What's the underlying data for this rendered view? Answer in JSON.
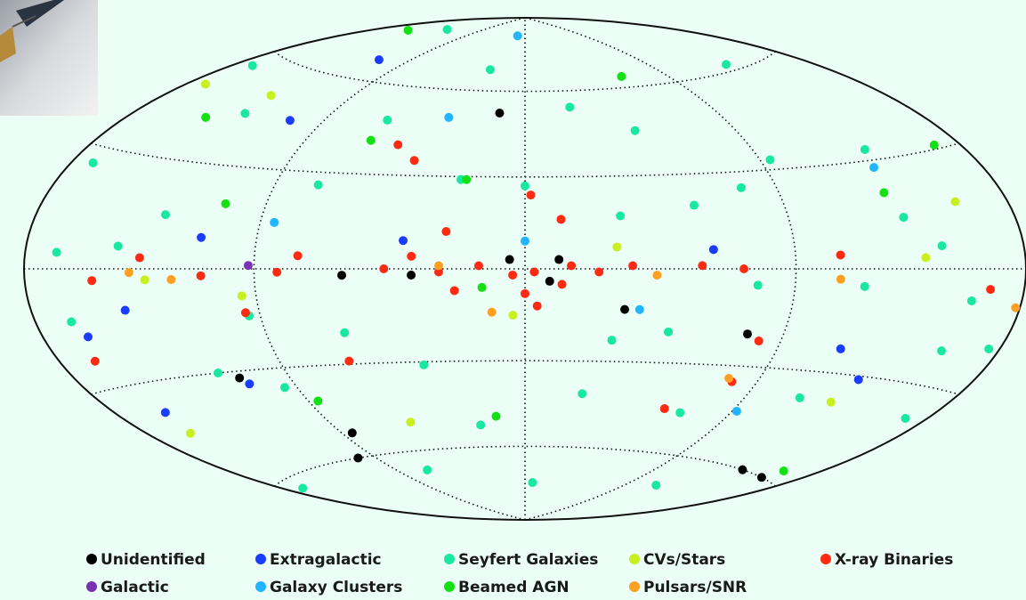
{
  "chart_data": {
    "type": "skymap",
    "xlim": [
      180,
      -180
    ],
    "ylim": [
      -90,
      90
    ],
    "xticks": [
      -90,
      0,
      90
    ],
    "yticks": [
      -60,
      -30,
      0,
      30,
      60
    ],
    "grid": true,
    "series": [
      {
        "name": "Unidentified",
        "color": "#000000",
        "x": [
          12,
          60,
          37,
          5,
          -11,
          -8,
          -33,
          -77,
          110,
          85,
          100,
          -140,
          -160
        ],
        "y": [
          52,
          -2,
          -2,
          3,
          3,
          -4,
          -13,
          -20,
          -32,
          -52,
          -60,
          -60,
          -60
        ]
      },
      {
        "name": "Extragalactic",
        "color": "#1a3cff",
        "x": [
          105,
          111,
          40,
          110,
          140,
          157,
          108,
          -114,
          -130,
          -62,
          160
        ],
        "y": [
          45,
          67,
          9,
          9,
          -11,
          -38,
          -34,
          -23,
          -31,
          6,
          -17
        ]
      },
      {
        "name": "Seyfert Galaxies",
        "color": "#19e8a0",
        "x": [
          135,
          25,
          -22,
          -47,
          -77,
          -58,
          -136,
          -155,
          -175,
          166,
          164,
          170,
          117,
          95,
          86,
          170,
          37,
          -23,
          -7,
          -113,
          -113,
          -170,
          -136,
          170,
          129,
          74,
          62,
          23,
          -32,
          -49,
          -77,
          -115,
          -133,
          -145,
          126,
          141,
          94,
          21,
          70,
          -30,
          -68,
          0,
          62,
          -94,
          -158
        ],
        "y": [
          80,
          68,
          54,
          45,
          25,
          20,
          33,
          -21,
          -19,
          4,
          -13,
          26,
          -30,
          -36,
          -41,
          -63,
          -31,
          -41,
          -74,
          -70,
          -38,
          -38,
          62,
          56,
          45,
          26,
          -20,
          29,
          17,
          -20,
          -5,
          -5,
          14,
          6,
          15,
          6,
          -14,
          -52,
          -67,
          -23,
          -46,
          27,
          48,
          33,
          -8
        ]
      },
      {
        "name": "CVs/Stars",
        "color": "#c8f01e",
        "x": [
          171,
          130,
          -30,
          -138,
          -157,
          160,
          53,
          4,
          95,
          130,
          -128
        ],
        "y": [
          49,
          51,
          7,
          3,
          17,
          -44,
          -50,
          -15,
          -8,
          -3,
          -38
        ]
      },
      {
        "name": "X-ray Binaries",
        "color": "#ff2a12",
        "x": [
          51,
          42,
          -2,
          -12,
          26,
          75,
          82,
          151,
          164,
          95,
          46,
          37,
          28,
          15,
          4,
          -3,
          -15,
          -24,
          -35,
          -58,
          -72,
          -4,
          0,
          23,
          -106,
          -165,
          -82,
          -80,
          -60,
          64,
          132,
          109,
          -12
        ],
        "y": [
          40,
          35,
          24,
          16,
          12,
          4,
          -1,
          -3,
          -23,
          -13,
          0,
          4,
          -1,
          1,
          -2,
          -1,
          1,
          -1,
          1,
          1,
          0,
          -12,
          -8,
          -7,
          4,
          -5,
          -22,
          -35,
          -45,
          -29,
          3,
          -2,
          -5
        ]
      },
      {
        "name": "Galactic",
        "color": "#7a32b4",
        "x": [
          92
        ],
        "y": [
          1
        ]
      },
      {
        "name": "Galaxy Clusters",
        "color": "#22b4ff",
        "x": [
          13,
          35,
          85,
          0,
          -133,
          -92,
          -38
        ],
        "y": [
          82,
          50,
          14,
          9,
          28,
          -44,
          -13
        ]
      },
      {
        "name": "Beamed AGN",
        "color": "#14e014",
        "x": [
          160,
          -62,
          63,
          21,
          144,
          105,
          -130,
          -168,
          14,
          86,
          13,
          -162
        ],
        "y": [
          76,
          64,
          41,
          29,
          42,
          19,
          21,
          31,
          -6,
          -41,
          -49,
          -57
        ]
      },
      {
        "name": "Pulsars/SNR",
        "color": "#ffa022",
        "x": [
          -178,
          -106,
          11,
          120,
          136,
          -43,
          -78,
          28
        ],
        "y": [
          -9,
          -3,
          -14,
          -3,
          -1,
          -2,
          -34,
          1
        ]
      }
    ]
  }
}
